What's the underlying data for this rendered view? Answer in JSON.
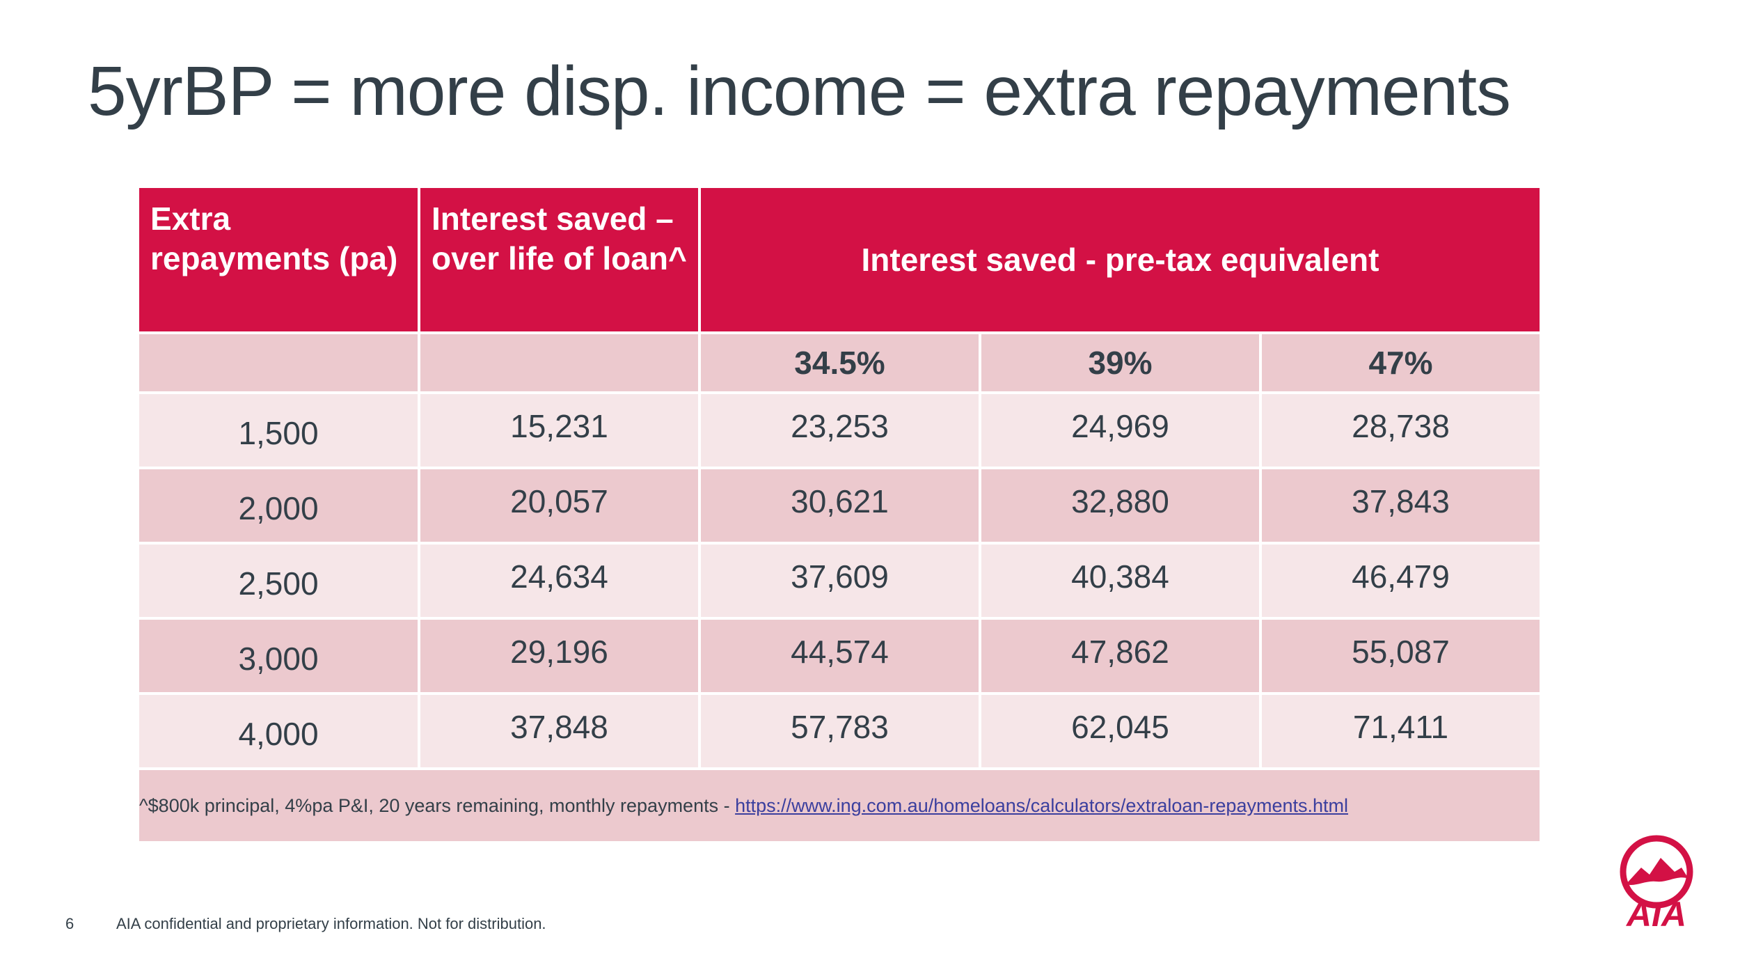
{
  "title": "5yrBP = more disp. income = extra repayments",
  "table": {
    "header": {
      "col1": "Extra repayments (pa)",
      "col2": "Interest saved – over life of loan^",
      "merged": "Interest saved - pre-tax equivalent"
    },
    "subheader": [
      "",
      "",
      "34.5%",
      "39%",
      "47%"
    ],
    "rows": [
      [
        "1,500",
        "15,231",
        "23,253",
        "24,969",
        "28,738"
      ],
      [
        "2,000",
        "20,057",
        "30,621",
        "32,880",
        "37,843"
      ],
      [
        "2,500",
        "24,634",
        "37,609",
        "40,384",
        "46,479"
      ],
      [
        "3,000",
        "29,196",
        "44,574",
        "47,862",
        "55,087"
      ],
      [
        "4,000",
        "37,848",
        "57,783",
        "62,045",
        "71,411"
      ]
    ],
    "footnote": {
      "text": "^$800k principal, 4%pa P&I, 20 years remaining, monthly repayments - ",
      "link": "https://www.ing.com.au/homeloans/calculators/extraloan-repayments.html"
    }
  },
  "footer": {
    "page_number": "6",
    "confidential": "AIA confidential and proprietary information. Not for distribution."
  },
  "logo": {
    "name": "AIA",
    "color": "#d31145"
  },
  "colors": {
    "accent": "#d31145",
    "row_dark": "#ecc9ce",
    "row_light": "#f6e6e8",
    "text": "#333f48"
  }
}
